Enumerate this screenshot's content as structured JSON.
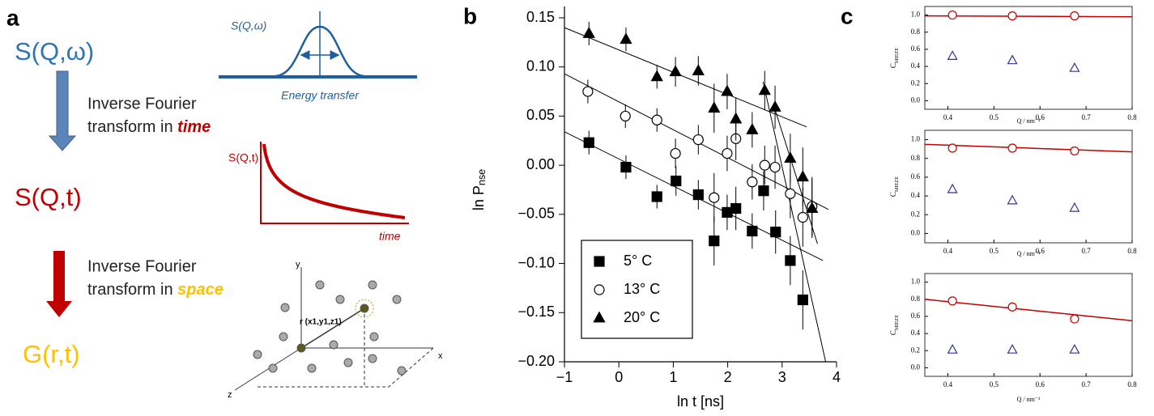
{
  "panel_labels": [
    "a",
    "b",
    "c"
  ],
  "panel_a": {
    "s_q_omega": "S(Q,ω)",
    "step1_line1": "Inverse Fourier",
    "step1_line2": "transform in",
    "step1_emph": "time",
    "s_q_t": "S(Q,t)",
    "step2_line1": "Inverse Fourier",
    "step2_line2": "transform in",
    "step2_emph": "space",
    "g_r_t": "G(r,t)",
    "spectrum_label": "S(Q,ω)",
    "spectrum_axis": "Energy transfer",
    "decay_label": "S(Q,t)",
    "decay_axis": "time",
    "axis_y": "y",
    "axis_x": "x",
    "axis_z": "z",
    "vector_label": "r (x1,y1,z1)"
  },
  "chart_data": [
    {
      "type": "scatter",
      "xlabel": "ln t [ns]",
      "ylabel": "ln P",
      "ylabel_subscript": "nse",
      "legend": "lower left",
      "box": false,
      "xlim": [
        -1,
        4
      ],
      "ylim": [
        -0.2,
        0.15
      ],
      "xticks": [
        {
          "value": -1,
          "label": "−1"
        },
        0,
        1,
        2,
        3,
        4
      ],
      "yticks": [
        {
          "value": -0.2,
          "label": "−0.20"
        },
        {
          "value": -0.15,
          "label": "−0.15"
        },
        {
          "value": -0.1,
          "label": "−0.10"
        },
        {
          "value": -0.05,
          "label": "−0.05"
        },
        {
          "value": 0,
          "label": "0.00"
        },
        0.05,
        {
          "value": 0.1,
          "label": "0.10"
        },
        0.15
      ],
      "series": [
        {
          "name": "5° C",
          "marker": "square",
          "fill": true,
          "color": "#000000",
          "x": [
            -0.55,
            0.13,
            0.7,
            1.05,
            1.46,
            1.75,
            1.99,
            2.15,
            2.45,
            2.66,
            2.88,
            3.15,
            3.38
          ],
          "values": [
            0.023,
            -0.002,
            -0.032,
            -0.016,
            -0.03,
            -0.077,
            -0.048,
            -0.044,
            -0.067,
            -0.026,
            -0.068,
            -0.097,
            -0.137
          ],
          "errors": [
            0.012,
            0.012,
            0.012,
            0.015,
            0.015,
            0.025,
            0.018,
            0.022,
            0.018,
            0.02,
            0.022,
            0.025,
            0.03
          ]
        },
        {
          "name": "13° C",
          "marker": "circle",
          "fill": false,
          "color": "#000000",
          "x": [
            -0.57,
            0.12,
            0.7,
            1.04,
            1.46,
            1.75,
            1.99,
            2.15,
            2.45,
            2.68,
            2.87,
            3.15,
            3.38,
            3.55
          ],
          "values": [
            0.075,
            0.05,
            0.046,
            0.012,
            0.026,
            -0.033,
            0.012,
            0.027,
            -0.017,
            0.0,
            -0.002,
            -0.029,
            -0.053,
            -0.042
          ],
          "errors": [
            0.012,
            0.012,
            0.012,
            0.015,
            0.015,
            0.025,
            0.018,
            0.022,
            0.018,
            0.02,
            0.022,
            0.025,
            0.03,
            0.03
          ]
        },
        {
          "name": "20° C",
          "marker": "triangle",
          "fill": true,
          "color": "#000000",
          "x": [
            -0.55,
            0.13,
            0.7,
            1.04,
            1.46,
            1.75,
            1.99,
            2.15,
            2.45,
            2.68,
            2.87,
            3.15,
            3.38,
            3.55
          ],
          "values": [
            0.134,
            0.128,
            0.09,
            0.095,
            0.096,
            0.058,
            0.075,
            0.047,
            0.036,
            0.076,
            0.059,
            0.007,
            -0.012,
            -0.044
          ],
          "errors": [
            0.012,
            0.012,
            0.012,
            0.015,
            0.015,
            0.025,
            0.018,
            0.022,
            0.018,
            0.02,
            0.022,
            0.025,
            0.03,
            0.03
          ]
        }
      ],
      "fits": [
        {
          "x": [
            -1,
            3.75
          ],
          "values": [
            0.034,
            -0.097
          ]
        },
        {
          "x": [
            -1,
            3.85
          ],
          "values": [
            0.093,
            -0.045
          ]
        },
        {
          "x": [
            -1,
            3.45
          ],
          "values": [
            0.14,
            0.039
          ]
        },
        {
          "x": [
            2.65,
            3.8
          ],
          "values": [
            0.085,
            -0.2
          ]
        },
        {
          "x": [
            2.85,
            3.65
          ],
          "values": [
            0.06,
            -0.08
          ]
        }
      ]
    },
    {
      "type": "scatter",
      "xlabel": "Q / nm⁻¹",
      "ylabel": "C",
      "ylabel_subscript": "MIEZE",
      "box": true,
      "xlim": [
        0.35,
        0.8
      ],
      "ylim": [
        -0.1,
        1.1
      ],
      "xticks": [
        0.4,
        0.5,
        0.6,
        0.7,
        0.8
      ],
      "yticks": [
        {
          "value": 0,
          "label": "0.0"
        },
        0.2,
        0.4,
        0.6,
        0.8,
        {
          "value": 1,
          "label": "1.0"
        }
      ],
      "series": [
        {
          "marker": "circle",
          "fill": false,
          "color": "#c00000",
          "x": [
            0.41,
            0.54,
            0.675
          ],
          "values": [
            1.0,
            0.99,
            0.99
          ]
        },
        {
          "marker": "triangle",
          "fill": false,
          "color": "#333399",
          "x": [
            0.41,
            0.54,
            0.675
          ],
          "values": [
            0.52,
            0.47,
            0.38
          ]
        }
      ],
      "fits": [
        {
          "x": [
            0.35,
            0.8
          ],
          "values": [
            0.99,
            0.98
          ],
          "color": "#c00000"
        }
      ]
    },
    {
      "type": "scatter",
      "xlabel": "Q / nm⁻¹",
      "ylabel": "C",
      "ylabel_subscript": "MIEZE",
      "box": true,
      "xlim": [
        0.35,
        0.8
      ],
      "ylim": [
        -0.1,
        1.1
      ],
      "xticks": [
        0.4,
        0.5,
        0.6,
        0.7,
        0.8
      ],
      "yticks": [
        {
          "value": 0,
          "label": "0.0"
        },
        0.2,
        0.4,
        0.6,
        0.8,
        {
          "value": 1,
          "label": "1.0"
        }
      ],
      "series": [
        {
          "marker": "circle",
          "fill": false,
          "color": "#c00000",
          "x": [
            0.41,
            0.54,
            0.675
          ],
          "values": [
            0.91,
            0.91,
            0.88
          ]
        },
        {
          "marker": "triangle",
          "fill": false,
          "color": "#333399",
          "x": [
            0.41,
            0.54,
            0.675
          ],
          "values": [
            0.47,
            0.35,
            0.27
          ]
        }
      ],
      "fits": [
        {
          "x": [
            0.35,
            0.8
          ],
          "values": [
            0.95,
            0.87
          ],
          "color": "#c00000"
        }
      ]
    },
    {
      "type": "scatter",
      "xlabel": "Q / nm⁻¹",
      "ylabel": "C",
      "ylabel_subscript": "MIEZE",
      "box": true,
      "xlim": [
        0.35,
        0.8
      ],
      "ylim": [
        -0.1,
        1.1
      ],
      "xticks": [
        0.4,
        0.5,
        0.6,
        0.7,
        0.8
      ],
      "yticks": [
        {
          "value": 0,
          "label": "0.0"
        },
        0.2,
        0.4,
        0.6,
        0.8,
        {
          "value": 1,
          "label": "1.0"
        }
      ],
      "series": [
        {
          "marker": "circle",
          "fill": false,
          "color": "#c00000",
          "x": [
            0.41,
            0.54,
            0.675
          ],
          "values": [
            0.78,
            0.71,
            0.57
          ]
        },
        {
          "marker": "triangle",
          "fill": false,
          "color": "#333399",
          "x": [
            0.41,
            0.54,
            0.675
          ],
          "values": [
            0.21,
            0.21,
            0.21
          ]
        }
      ],
      "fits": [
        {
          "x": [
            0.35,
            0.8
          ],
          "values": [
            0.8,
            0.55
          ],
          "color": "#c00000"
        }
      ]
    }
  ]
}
